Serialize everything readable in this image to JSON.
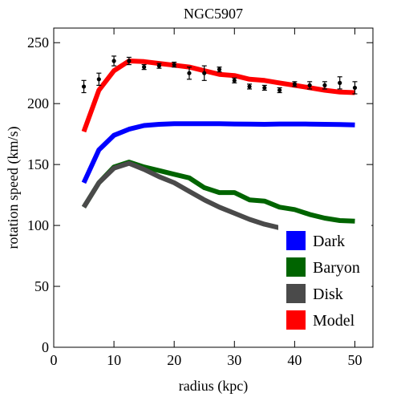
{
  "chart_data": {
    "type": "line",
    "title": "NGC5907",
    "xlabel": "radius (kpc)",
    "ylabel": "rotation speed (km/s)",
    "xlim": [
      0,
      53
    ],
    "ylim": [
      0,
      262
    ],
    "xticks": [
      0,
      10,
      20,
      30,
      40,
      50
    ],
    "yticks": [
      0,
      50,
      100,
      150,
      200,
      250
    ],
    "grid": false,
    "legend_position": "bottom-right",
    "series": [
      {
        "name": "Dark",
        "color": "#0000ff",
        "x": [
          5,
          7.5,
          10,
          12.5,
          15,
          17.5,
          20,
          22.5,
          25,
          27.5,
          30,
          32.5,
          35,
          37.5,
          40,
          42.5,
          45,
          47.5,
          50
        ],
        "y": [
          135,
          162,
          174,
          179,
          182,
          183,
          183.5,
          183.5,
          183.5,
          183.5,
          183.3,
          183.2,
          183,
          183.3,
          183.3,
          183.2,
          183,
          182.8,
          182.5
        ]
      },
      {
        "name": "Baryon",
        "color": "#006400",
        "x": [
          5,
          7.5,
          10,
          12.5,
          15,
          17.5,
          20,
          22.5,
          25,
          27.5,
          30,
          32.5,
          35,
          37.5,
          40,
          42.5,
          45,
          47.5,
          50
        ],
        "y": [
          115,
          135,
          148,
          152,
          148,
          145,
          142,
          139,
          131,
          127,
          127,
          121,
          120,
          115,
          113,
          109,
          106,
          104,
          103.5
        ]
      },
      {
        "name": "Disk",
        "color": "#4a4a4a",
        "x": [
          5,
          7.5,
          10,
          12.5,
          15,
          17.5,
          20,
          22.5,
          25,
          27.5,
          30,
          32.5,
          35,
          37.5,
          40,
          42.5,
          45,
          47.5,
          50
        ],
        "y": [
          115,
          135,
          147,
          151,
          146,
          140,
          135,
          128,
          121,
          115,
          110,
          105,
          101,
          98,
          94,
          91,
          88,
          85,
          83
        ]
      },
      {
        "name": "Model",
        "color": "#ff0000",
        "x": [
          5,
          7.5,
          10,
          12.5,
          15,
          17.5,
          20,
          22.5,
          25,
          27.5,
          30,
          32.5,
          35,
          37.5,
          40,
          42.5,
          45,
          47.5,
          50
        ],
        "y": [
          177,
          211,
          227,
          235,
          234.5,
          233,
          231.5,
          230,
          227,
          224,
          223,
          220,
          219,
          217,
          215,
          213,
          211,
          209.5,
          209
        ]
      }
    ],
    "observed": {
      "x": [
        5,
        7.5,
        10,
        12.5,
        15,
        17.5,
        20,
        22.5,
        25,
        27.5,
        30,
        32.5,
        35,
        37.5,
        40,
        42.5,
        45,
        47.5,
        50
      ],
      "y": [
        214,
        220,
        235,
        235,
        230,
        231,
        232,
        225,
        225,
        228,
        219,
        214,
        213,
        211,
        216,
        215,
        215,
        217,
        213
      ],
      "yerr": [
        5,
        5,
        4,
        3,
        2,
        2,
        2,
        5,
        6,
        2,
        2,
        2,
        2,
        2,
        2,
        3,
        3,
        5,
        5
      ]
    }
  }
}
